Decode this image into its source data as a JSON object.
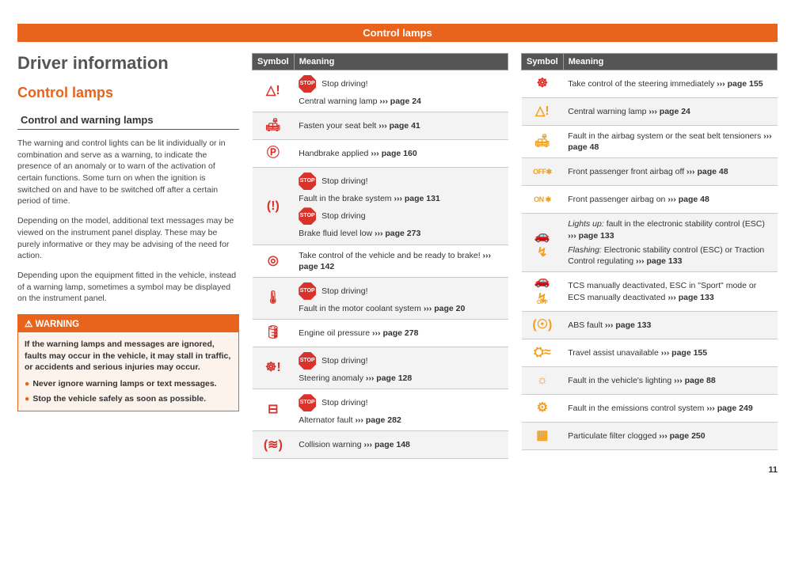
{
  "header": {
    "title": "Control lamps"
  },
  "h1": "Driver information",
  "h2": "Control lamps",
  "h3": "Control and warning lamps",
  "paragraphs": [
    "The warning and control lights can be lit individually or in combination and serve as a warning, to indicate the presence of an anomaly or to warn of the activation of certain functions. Some turn on when the ignition is switched on and have to be switched off after a certain period of time.",
    "Depending on the model, additional text messages may be viewed on the instrument panel display. These may be purely informative or they may be advising of the need for action.",
    "Depending upon the equipment fitted in the vehicle, instead of a warning lamp, sometimes a symbol may be displayed on the instrument panel."
  ],
  "warning": {
    "head": "⚠ WARNING",
    "main": "If the warning lamps and messages are ignored, faults may occur in the vehicle, it may stall in traffic, or accidents and serious injuries may occur.",
    "bullets": [
      "Never ignore warning lamps or text messages.",
      "Stop the vehicle safely as soon as possible."
    ]
  },
  "col_headers": {
    "symbol": "Symbol",
    "meaning": "Meaning"
  },
  "arrows": "›››",
  "table_mid": [
    {
      "glyph": "△!",
      "color": "red",
      "lines": [
        {
          "stop": "Stop driving!"
        },
        {
          "text": "Central warning lamp",
          "page": "page 24"
        }
      ]
    },
    {
      "glyph": "🛋",
      "color": "red",
      "lines": [
        {
          "text": "Fasten your seat belt",
          "page": "page 41"
        }
      ]
    },
    {
      "glyph": "Ⓟ",
      "color": "red",
      "lines": [
        {
          "text": "Handbrake applied",
          "page": "page 160"
        }
      ]
    },
    {
      "glyph": "(!)",
      "color": "red",
      "lines": [
        {
          "stop": "Stop driving!"
        },
        {
          "text": "Fault in the brake system",
          "page": "page 131"
        },
        {
          "stop": "Stop driving"
        },
        {
          "text": "Brake fluid level low",
          "page": "page 273"
        }
      ]
    },
    {
      "glyph": "◎",
      "color": "red",
      "lines": [
        {
          "text": "Take control of the vehicle and be ready to brake!",
          "page": "page 142"
        }
      ]
    },
    {
      "glyph": "🌡",
      "color": "red",
      "lines": [
        {
          "stop": "Stop driving!"
        },
        {
          "text": "Fault in the motor coolant system",
          "page": "page 20"
        }
      ]
    },
    {
      "glyph": "🛢",
      "color": "red",
      "lines": [
        {
          "text": "Engine oil pressure",
          "page": "page 278"
        }
      ]
    },
    {
      "glyph": "☸!",
      "color": "red",
      "lines": [
        {
          "stop": "Stop driving!"
        },
        {
          "text": "Steering anomaly",
          "page": "page 128"
        }
      ]
    },
    {
      "glyph": "⊟",
      "color": "red",
      "lines": [
        {
          "stop": "Stop driving!"
        },
        {
          "text": "Alternator fault",
          "page": "page 282"
        }
      ]
    },
    {
      "glyph": "(≋)",
      "color": "red",
      "lines": [
        {
          "text": "Collision warning",
          "page": "page 148"
        }
      ]
    }
  ],
  "table_right": [
    {
      "glyph": "☸",
      "color": "red",
      "lines": [
        {
          "text": "Take control of the steering immediately",
          "page": "page 155"
        }
      ]
    },
    {
      "glyph": "△!",
      "color": "amber",
      "lines": [
        {
          "text": "Central warning lamp",
          "page": "page 24"
        }
      ]
    },
    {
      "glyph": "🛋",
      "color": "amber",
      "lines": [
        {
          "text": "Fault in the airbag system or the seat belt tensioners",
          "page": "page 48"
        }
      ]
    },
    {
      "glyph": "OFF✱",
      "color": "amber",
      "onoff": true,
      "lines": [
        {
          "text": "Front passenger front airbag off",
          "page": "page 48"
        }
      ]
    },
    {
      "glyph": "ON ✱",
      "color": "amber",
      "onoff": true,
      "lines": [
        {
          "text": "Front passenger airbag on",
          "page": "page 48"
        }
      ]
    },
    {
      "glyph": "🚗↯",
      "color": "amber",
      "lines": [
        {
          "prefix_i": "Lights up:",
          "text": " fault in the electronic stability control (ESC)",
          "page": "page 133"
        },
        {
          "prefix_i": "Flashing:",
          "text": " Electronic stability control (ESC) or Traction Control regulating",
          "page": "page 133"
        }
      ]
    },
    {
      "glyph": "🚗↯",
      "color": "amber",
      "sub": "OFF",
      "lines": [
        {
          "text": "TCS manually deactivated, ESC in \"Sport\" mode or ECS manually deactivated",
          "page": "page 133"
        }
      ]
    },
    {
      "glyph": "(☉)",
      "color": "amber",
      "lines": [
        {
          "text": "ABS fault",
          "page": "page 133"
        }
      ]
    },
    {
      "glyph": "⛭≈",
      "color": "amber",
      "lines": [
        {
          "text": "Travel assist unavailable",
          "page": "page 155"
        }
      ]
    },
    {
      "glyph": "☼",
      "color": "amber",
      "lines": [
        {
          "text": "Fault in the vehicle's lighting",
          "page": "page 88"
        }
      ]
    },
    {
      "glyph": "⚙",
      "color": "amber",
      "lines": [
        {
          "text": "Fault in the emissions control system",
          "page": "page 249"
        }
      ]
    },
    {
      "glyph": "▦",
      "color": "amber",
      "lines": [
        {
          "text": "Particulate filter clogged",
          "page": "page 250"
        }
      ]
    }
  ],
  "page_number": "11"
}
